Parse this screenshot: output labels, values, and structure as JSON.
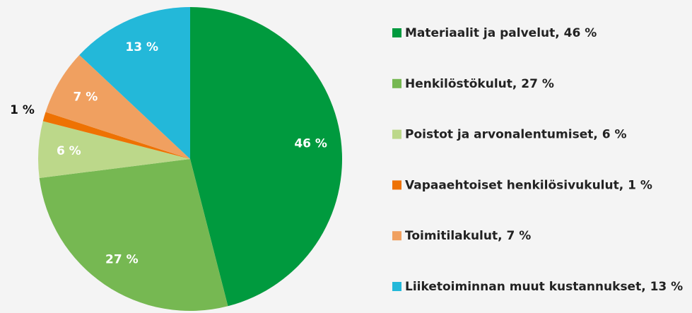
{
  "chart_data": {
    "type": "pie",
    "categories": [
      "Materiaalit ja palvelut, 46 %",
      "Henkilöstökulut, 27 %",
      "Poistot ja arvonalentumiset, 6 %",
      "Vapaaehtoiset henkilösivukulut, 1 %",
      "Toimitilakulut, 7 %",
      "Liiketoiminnan muut kustannukset, 13 %"
    ],
    "values": [
      46,
      27,
      6,
      1,
      7,
      13
    ],
    "value_labels": [
      "46 %",
      "27 %",
      "6 %",
      "1 %",
      "7 %",
      "13 %"
    ],
    "colors": [
      "#009a3e",
      "#76b852",
      "#bcd88a",
      "#ee7203",
      "#f0a060",
      "#23b8d9"
    ]
  }
}
